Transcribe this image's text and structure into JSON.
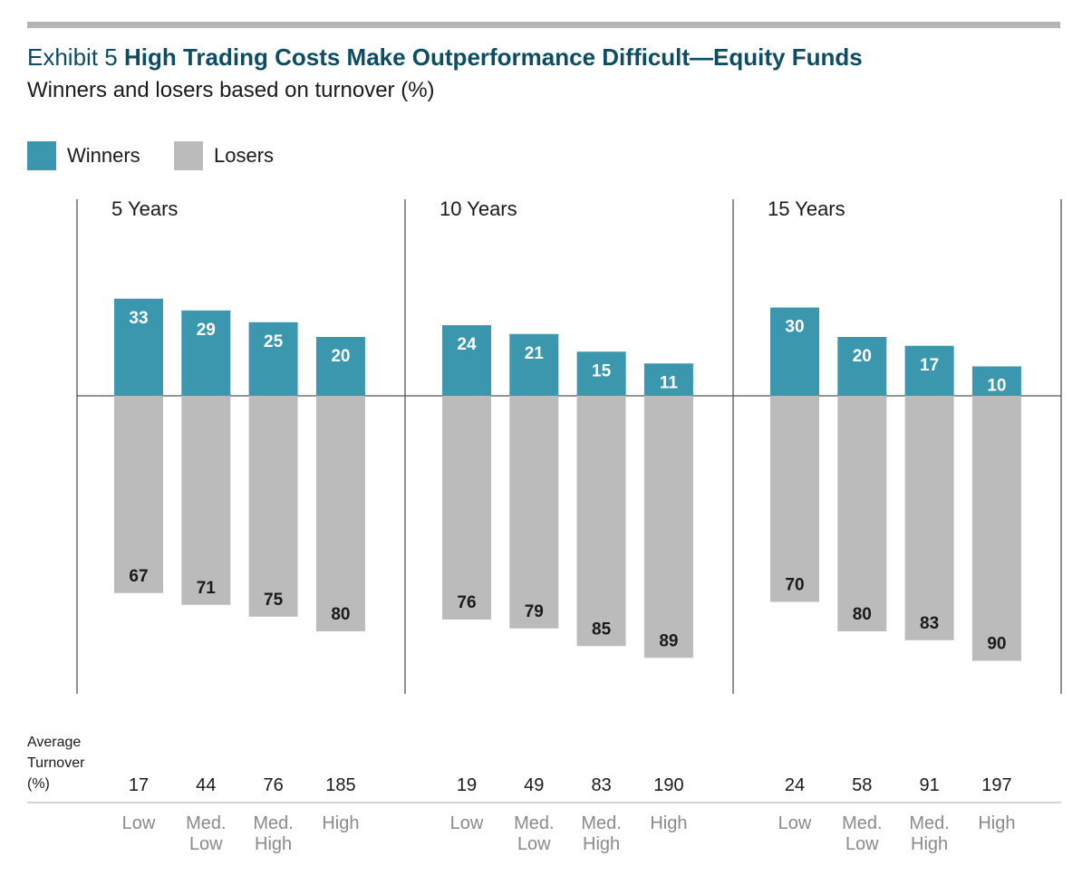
{
  "header": {
    "exhibit": "Exhibit 5",
    "title": "High Trading Costs Make Outperformance Difficult—Equity Funds",
    "subtitle": "Winners and losers based on turnover (%)"
  },
  "legend": [
    {
      "label": "Winners",
      "color": "#3a97ad"
    },
    {
      "label": "Losers",
      "color": "#bbbbbb"
    }
  ],
  "colors": {
    "winners": "#3a97ad",
    "losers": "#bbbbbb",
    "title": "#0d4d63",
    "axis": "#555555"
  },
  "turnover_row_label": [
    "Average",
    "Turnover",
    "(%)"
  ],
  "chart_data": {
    "type": "bar",
    "title": "High Trading Costs Make Outperformance Difficult—Equity Funds",
    "subtitle": "Winners and losers based on turnover (%)",
    "ylabel": "%",
    "ylim": [
      -100,
      100
    ],
    "categories": [
      "Low",
      "Med.\nLow",
      "Med.\nHigh",
      "High"
    ],
    "panels": [
      {
        "name": "5 Years",
        "series": [
          {
            "name": "Winners",
            "values": [
              33,
              29,
              25,
              20
            ]
          },
          {
            "name": "Losers",
            "values": [
              67,
              71,
              75,
              80
            ]
          }
        ],
        "average_turnover": [
          17,
          44,
          76,
          185
        ]
      },
      {
        "name": "10 Years",
        "series": [
          {
            "name": "Winners",
            "values": [
              24,
              21,
              15,
              11
            ]
          },
          {
            "name": "Losers",
            "values": [
              76,
              79,
              85,
              89
            ]
          }
        ],
        "average_turnover": [
          19,
          49,
          83,
          190
        ]
      },
      {
        "name": "15 Years",
        "series": [
          {
            "name": "Winners",
            "values": [
              30,
              20,
              17,
              10
            ]
          },
          {
            "name": "Losers",
            "values": [
              70,
              80,
              83,
              90
            ]
          }
        ],
        "average_turnover": [
          24,
          58,
          91,
          197
        ]
      }
    ]
  }
}
